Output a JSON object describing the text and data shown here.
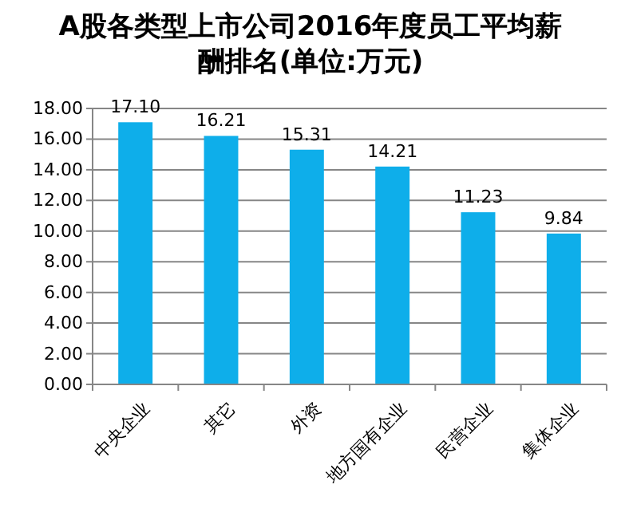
{
  "chart_data": {
    "type": "bar",
    "title": "A股各类型上市公司2016年度员工平均薪酬排名(单位:万元)",
    "categories": [
      "中央企业",
      "其它",
      "外资",
      "地方国有企业",
      "民营企业",
      "集体企业"
    ],
    "values": [
      17.1,
      16.21,
      15.31,
      14.21,
      11.23,
      9.84
    ],
    "value_labels": [
      "17.10",
      "16.21",
      "15.31",
      "14.21",
      "11.23",
      "9.84"
    ],
    "color": "#0eaeea",
    "ylim": [
      0,
      18
    ],
    "yticks": [
      {
        "value": 0,
        "label": "0.00"
      },
      {
        "value": 2,
        "label": "2.00"
      },
      {
        "value": 4,
        "label": "4.00"
      },
      {
        "value": 6,
        "label": "6.00"
      },
      {
        "value": 8,
        "label": "8.00"
      },
      {
        "value": 10,
        "label": "10.00"
      },
      {
        "value": 12,
        "label": "12.00"
      },
      {
        "value": 14,
        "label": "14.00"
      },
      {
        "value": 16,
        "label": "16.00"
      },
      {
        "value": 18,
        "label": "18.00"
      }
    ],
    "grid": "y"
  }
}
